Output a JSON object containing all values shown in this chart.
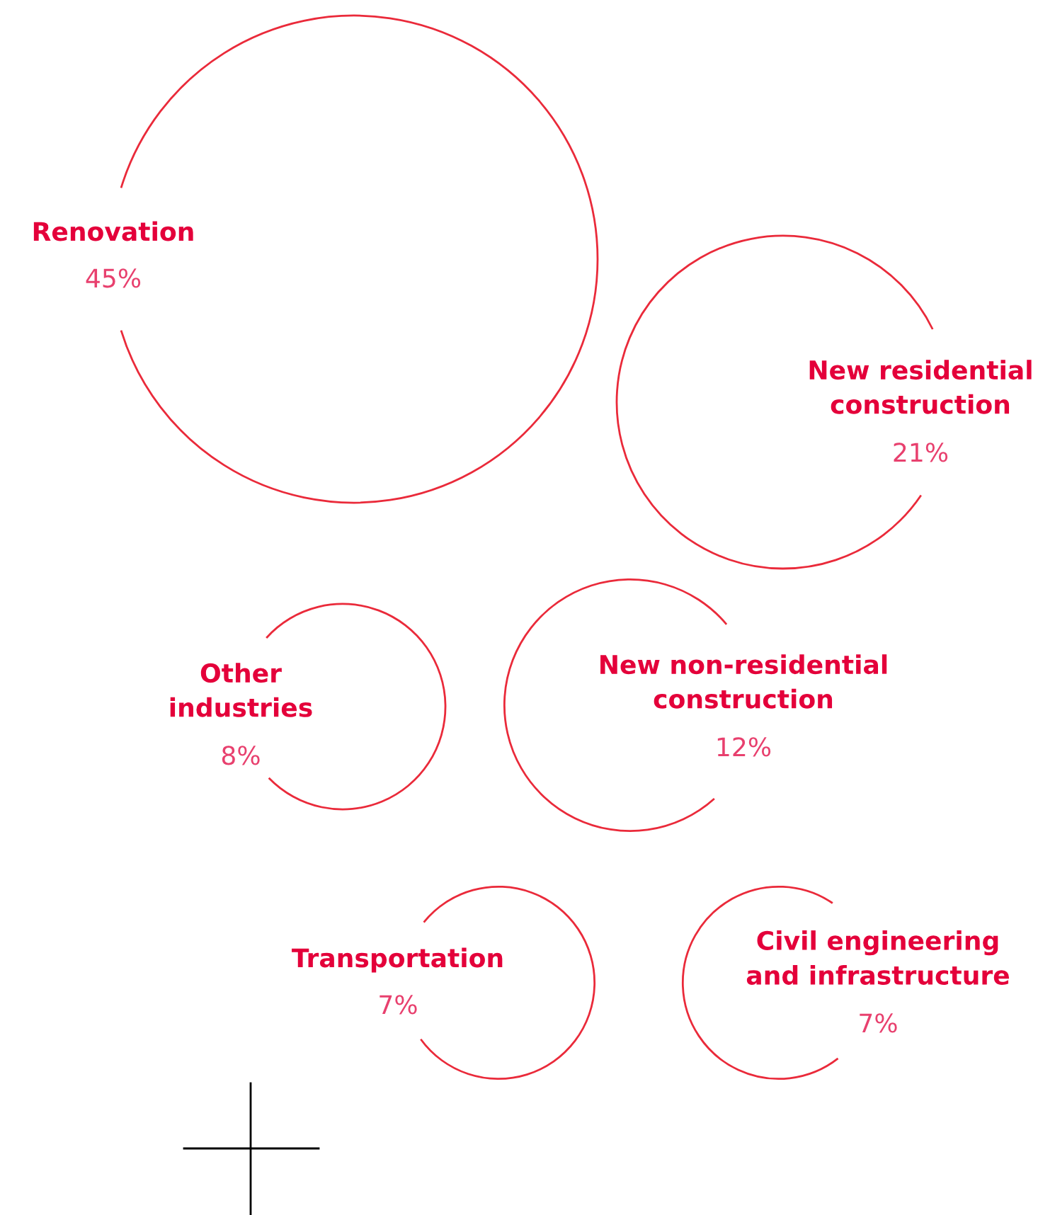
{
  "chart_data": {
    "type": "other",
    "categories": [
      "Renovation",
      "New residential\nconstruction",
      "Other\nindustries",
      "New non-residential\nconstruction",
      "Transportation",
      "Civil engineering\nand infrastructure"
    ],
    "values": [
      45,
      21,
      8,
      12,
      7,
      7
    ],
    "value_labels": [
      "45%",
      "21%",
      "8%",
      "12%",
      "7%",
      "7%"
    ],
    "colors": [
      "#ea2a3a",
      "#ea2a3a",
      "#ea2a3a",
      "#ea2a3a",
      "#ea2a3a",
      "#ea2a3a"
    ]
  }
}
